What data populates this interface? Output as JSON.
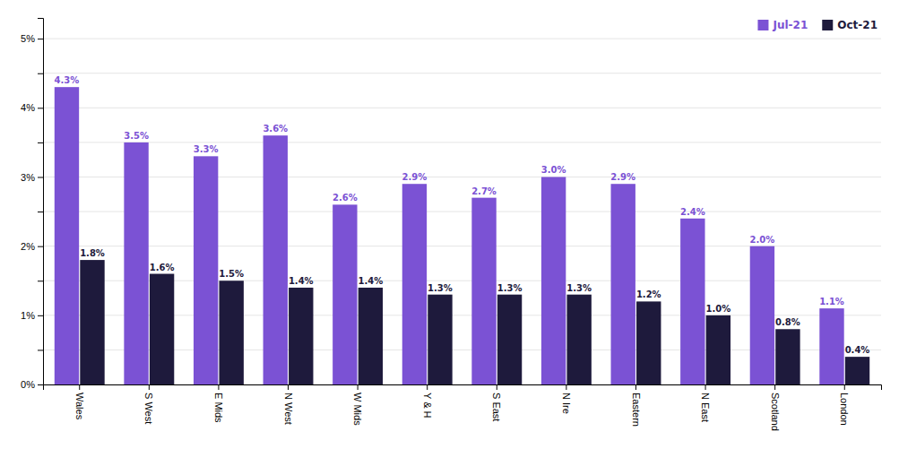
{
  "chart_data": {
    "type": "bar",
    "categories": [
      "Wales",
      "S West",
      "E Mids",
      "N West",
      "W Mids",
      "Y & H",
      "S East",
      "N Ire",
      "Eastern",
      "N East",
      "Scotland",
      "London"
    ],
    "series": [
      {
        "name": "Jul-21",
        "color": "#7B52D4",
        "values": [
          4.3,
          3.5,
          3.3,
          3.6,
          2.6,
          2.9,
          2.7,
          3.0,
          2.9,
          2.4,
          2.0,
          1.1
        ],
        "value_labels": [
          "4.3%",
          "3.5%",
          "3.3%",
          "3.6%",
          "2.6%",
          "2.9%",
          "2.7%",
          "3.0%",
          "2.9%",
          "2.4%",
          "2.0%",
          "1.1%"
        ]
      },
      {
        "name": "Oct-21",
        "color": "#1E1A3C",
        "values": [
          1.8,
          1.6,
          1.5,
          1.4,
          1.4,
          1.3,
          1.3,
          1.3,
          1.2,
          1.0,
          0.8,
          0.4
        ],
        "value_labels": [
          "1.8%",
          "1.6%",
          "1.5%",
          "1.4%",
          "1.4%",
          "1.3%",
          "1.3%",
          "1.3%",
          "1.2%",
          "1.0%",
          "0.8%",
          "0.4%"
        ]
      }
    ],
    "ylim": [
      0,
      5.3
    ],
    "yticks": [
      {
        "value": 0.0,
        "label": "0%"
      },
      {
        "value": 0.5,
        "label": null
      },
      {
        "value": 1.0,
        "label": "1%"
      },
      {
        "value": 1.5,
        "label": null
      },
      {
        "value": 2.0,
        "label": "2%"
      },
      {
        "value": 2.5,
        "label": null
      },
      {
        "value": 3.0,
        "label": "3%"
      },
      {
        "value": 3.5,
        "label": null
      },
      {
        "value": 4.0,
        "label": "4%"
      },
      {
        "value": 4.5,
        "label": null
      },
      {
        "value": 5.0,
        "label": "5%"
      }
    ],
    "grid": true,
    "legend": "upper right",
    "data_labels": true
  }
}
